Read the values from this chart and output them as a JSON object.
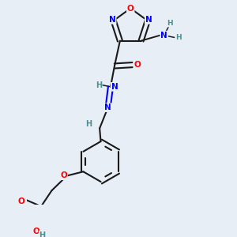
{
  "background_color": "#e8eef5",
  "bond_color": "#1a1a1a",
  "atom_colors": {
    "N": "#0000ff",
    "O": "#ff0000",
    "C": "#1a1a1a",
    "H": "#4a9090"
  },
  "figsize": [
    3.0,
    3.0
  ],
  "dpi": 100
}
